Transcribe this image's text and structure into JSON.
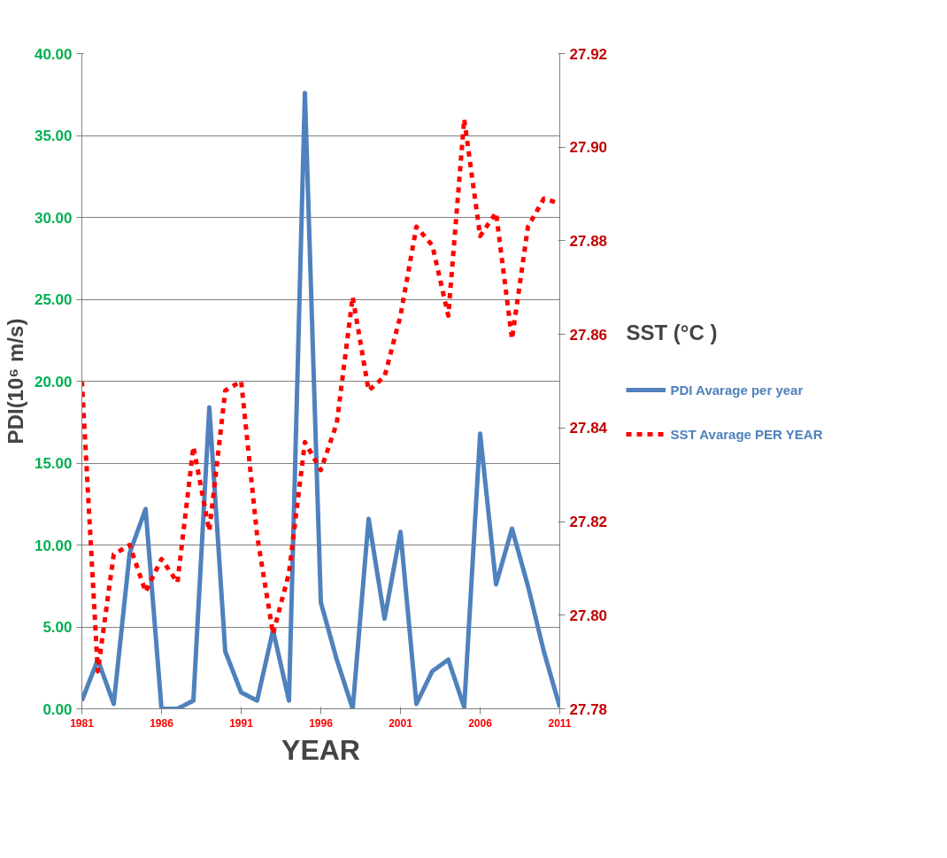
{
  "chart_data": {
    "type": "line",
    "xlabel": "YEAR",
    "ylabel": "PDI(10⁶ m/s)",
    "y2label": "SST (°C )",
    "x": [
      1981,
      1982,
      1983,
      1984,
      1985,
      1986,
      1987,
      1988,
      1989,
      1990,
      1991,
      1992,
      1993,
      1994,
      1995,
      1996,
      1997,
      1998,
      1999,
      2000,
      2001,
      2002,
      2003,
      2004,
      2005,
      2006,
      2007,
      2008,
      2009,
      2010,
      2011
    ],
    "series": [
      {
        "name": "PDI Avarage per year",
        "color": "#4f81bd",
        "line_style": "solid",
        "values": [
          0.5,
          3.0,
          0.3,
          9.5,
          12.2,
          0,
          0,
          0.5,
          18.4,
          3.5,
          1.0,
          0.5,
          4.8,
          0.5,
          37.6,
          6.5,
          3.0,
          0,
          11.6,
          5.5,
          10.8,
          0.3,
          2.3,
          3.0,
          0.1,
          16.8,
          7.6,
          11.0,
          7.5,
          3.5,
          0.1
        ]
      },
      {
        "name": "SST Avarage PER YEAR",
        "color": "#ff0000",
        "line_style": "dashed",
        "axis": "y2",
        "values": [
          27.85,
          27.788,
          27.813,
          27.815,
          27.805,
          27.812,
          27.807,
          27.836,
          27.818,
          27.848,
          27.85,
          27.817,
          27.796,
          27.809,
          27.837,
          27.831,
          27.841,
          27.868,
          27.848,
          27.851,
          27.864,
          27.883,
          27.879,
          27.864,
          27.906,
          27.881,
          27.886,
          27.859,
          27.883,
          27.889,
          27.888
        ]
      }
    ],
    "xlim": [
      1981,
      2011
    ],
    "xticks": [
      1981,
      1986,
      1991,
      1996,
      2001,
      2006,
      2011
    ],
    "ylim": [
      0,
      40
    ],
    "yticks": [
      {
        "value": 0,
        "label": "0.00"
      },
      {
        "value": 5,
        "label": "5.00"
      },
      {
        "value": 10,
        "label": "10.00"
      },
      {
        "value": 15,
        "label": "15.00"
      },
      {
        "value": 20,
        "label": "20.00"
      },
      {
        "value": 25,
        "label": "25.00"
      },
      {
        "value": 30,
        "label": "30.00"
      },
      {
        "value": 35,
        "label": "35.00"
      },
      {
        "value": 40,
        "label": "40.00"
      }
    ],
    "y2lim": [
      27.78,
      27.92
    ],
    "y2ticks": [
      27.78,
      {
        "value": 27.8,
        "label": "27.80"
      },
      27.82,
      27.84,
      27.86,
      27.88,
      {
        "value": 27.9,
        "label": "27.90"
      },
      27.92
    ],
    "grid": "y",
    "legend": "right",
    "marker": "none"
  }
}
